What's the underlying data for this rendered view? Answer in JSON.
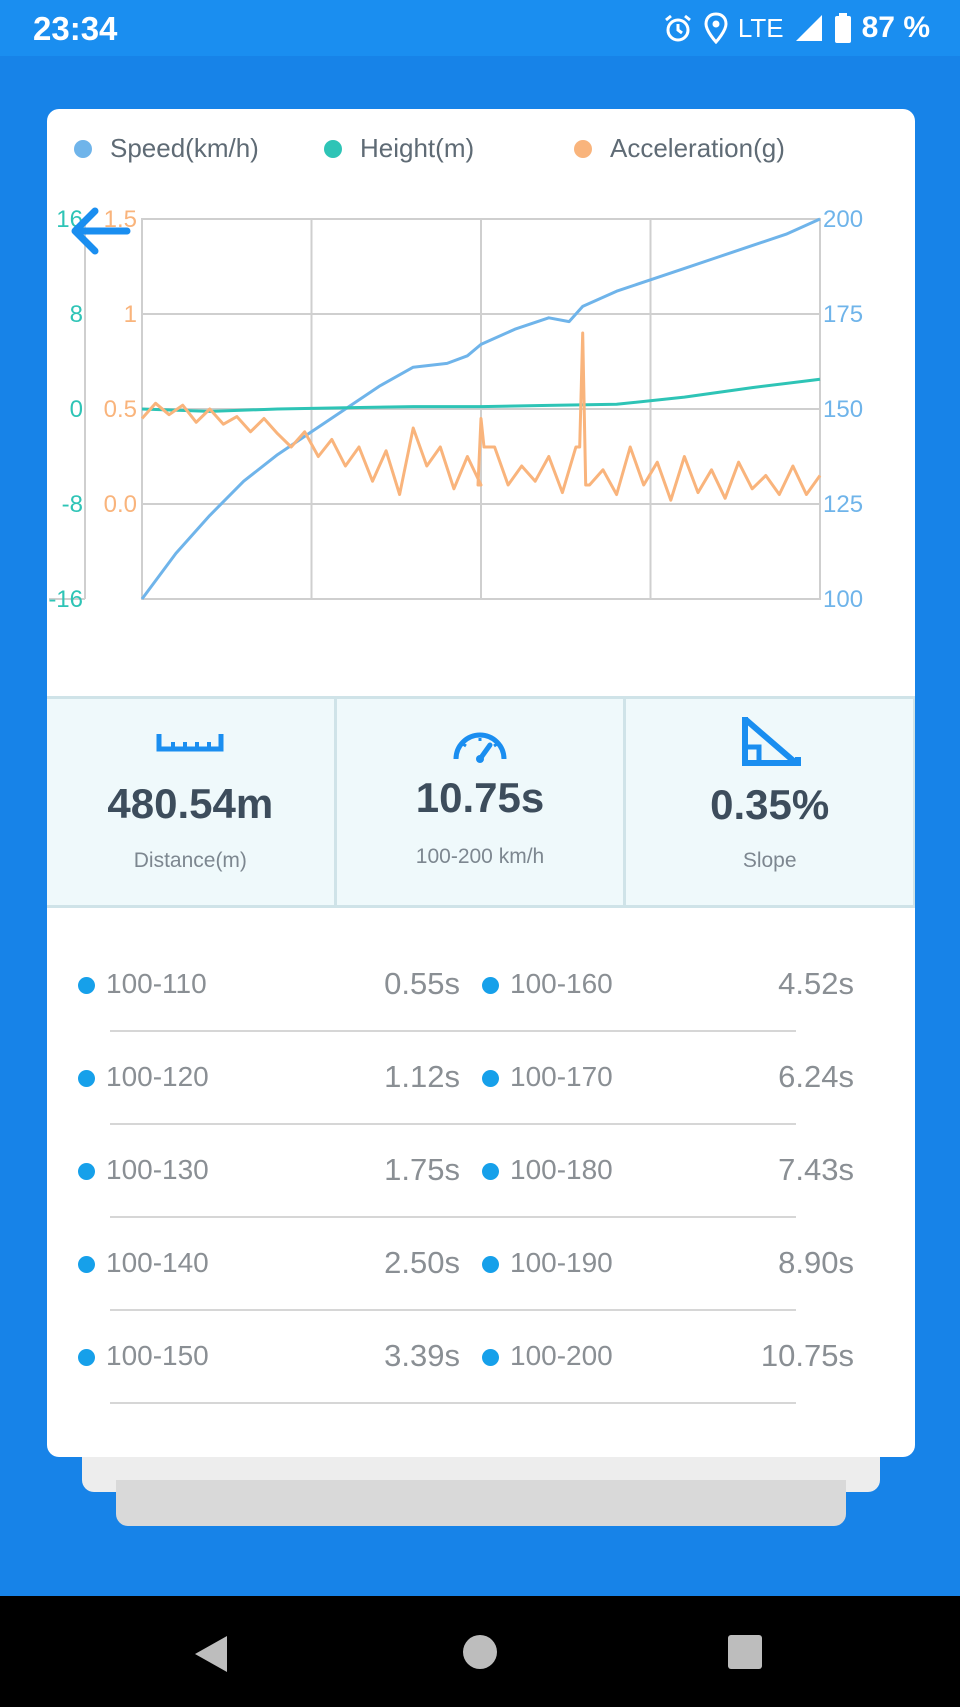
{
  "status": {
    "time": "23:34",
    "network": "LTE",
    "battery": "87 %"
  },
  "legend": [
    {
      "label": "Speed(km/h)",
      "color": "#6fb4ea"
    },
    {
      "label": "Height(m)",
      "color": "#2ec4b6"
    },
    {
      "label": "Acceleration(g)",
      "color": "#f9b47c"
    }
  ],
  "chart_data": {
    "type": "line",
    "x_categories": 4,
    "axes": {
      "height_axis": {
        "ticks": [
          "16",
          "8",
          "0",
          "-8",
          "-16"
        ],
        "range": [
          -16,
          16
        ],
        "color": "#2ec4b6"
      },
      "accel_axis": {
        "ticks": [
          "1.5",
          "1",
          "0.5",
          "0.0"
        ],
        "range": [
          -0.5,
          1.5
        ],
        "color": "#f9b47c"
      },
      "speed_axis": {
        "ticks": [
          "200",
          "175",
          "150",
          "125",
          "100"
        ],
        "range": [
          100,
          200
        ],
        "color": "#6fb4ea"
      }
    },
    "grid": true,
    "series": [
      {
        "name": "Speed(km/h)",
        "color": "#6fb4ea",
        "x": [
          0,
          0.05,
          0.1,
          0.15,
          0.2,
          0.25,
          0.3,
          0.35,
          0.4,
          0.45,
          0.48,
          0.5,
          0.55,
          0.6,
          0.63,
          0.65,
          0.7,
          0.75,
          0.8,
          0.85,
          0.9,
          0.95,
          1.0
        ],
        "y": [
          100,
          112,
          122,
          131,
          138,
          144,
          150,
          156,
          161,
          162,
          164,
          167,
          171,
          174,
          173,
          177,
          181,
          184,
          187,
          190,
          193,
          196,
          200
        ]
      },
      {
        "name": "Height(m)",
        "color": "#2ec4b6",
        "x": [
          0,
          0.1,
          0.2,
          0.3,
          0.4,
          0.5,
          0.6,
          0.7,
          0.8,
          0.9,
          1.0
        ],
        "y": [
          0,
          -0.2,
          0,
          0.1,
          0.2,
          0.2,
          0.3,
          0.4,
          1.0,
          1.8,
          2.5
        ]
      },
      {
        "name": "Acceleration(g)",
        "color": "#f9b47c",
        "x": [
          0,
          0.02,
          0.04,
          0.06,
          0.08,
          0.1,
          0.12,
          0.14,
          0.16,
          0.18,
          0.2,
          0.22,
          0.24,
          0.26,
          0.28,
          0.3,
          0.32,
          0.34,
          0.36,
          0.38,
          0.4,
          0.42,
          0.44,
          0.46,
          0.48,
          0.5,
          0.52,
          0.54,
          0.56,
          0.58,
          0.6,
          0.62,
          0.64,
          0.66,
          0.68,
          0.7,
          0.72,
          0.74,
          0.76,
          0.78,
          0.8,
          0.82,
          0.84,
          0.86,
          0.88,
          0.9,
          0.92,
          0.94,
          0.96,
          0.98,
          1.0
        ],
        "y": [
          0.45,
          0.53,
          0.47,
          0.52,
          0.43,
          0.5,
          0.42,
          0.46,
          0.38,
          0.45,
          0.37,
          0.3,
          0.38,
          0.25,
          0.34,
          0.2,
          0.3,
          0.12,
          0.28,
          0.05,
          0.4,
          0.2,
          0.3,
          0.08,
          0.25,
          0.1,
          0.3,
          0.1,
          0.2,
          0.12,
          0.25,
          0.06,
          0.3,
          0.1,
          0.18,
          0.05,
          0.3,
          0.1,
          0.22,
          0.02,
          0.25,
          0.06,
          0.18,
          0.03,
          0.22,
          0.08,
          0.15,
          0.05,
          0.2,
          0.05,
          0.15
        ]
      }
    ],
    "spikes": [
      {
        "series": "Acceleration(g)",
        "x": 0.5,
        "y": 0.45
      },
      {
        "series": "Acceleration(g)",
        "x": 0.65,
        "y": 0.9
      }
    ]
  },
  "stats": [
    {
      "icon": "ruler-icon",
      "value": "480.54m",
      "label": "Distance(m)"
    },
    {
      "icon": "speedometer-icon",
      "value": "10.75s",
      "label": "100-200 km/h"
    },
    {
      "icon": "slope-icon",
      "value": "0.35%",
      "label": "Slope"
    }
  ],
  "table": {
    "rows": [
      [
        {
          "range": "100-110",
          "time": "0.55s"
        },
        {
          "range": "100-160",
          "time": "4.52s"
        }
      ],
      [
        {
          "range": "100-120",
          "time": "1.12s"
        },
        {
          "range": "100-170",
          "time": "6.24s"
        }
      ],
      [
        {
          "range": "100-130",
          "time": "1.75s"
        },
        {
          "range": "100-180",
          "time": "7.43s"
        }
      ],
      [
        {
          "range": "100-140",
          "time": "2.50s"
        },
        {
          "range": "100-190",
          "time": "8.90s"
        }
      ],
      [
        {
          "range": "100-150",
          "time": "3.39s"
        },
        {
          "range": "100-200",
          "time": "10.75s"
        }
      ]
    ]
  },
  "colors": {
    "accent": "#1783e8",
    "dot": "#16a0ea",
    "stat_icon": "#1a8ef0"
  },
  "nav": [
    "back-icon",
    "home-icon",
    "recents-icon"
  ]
}
